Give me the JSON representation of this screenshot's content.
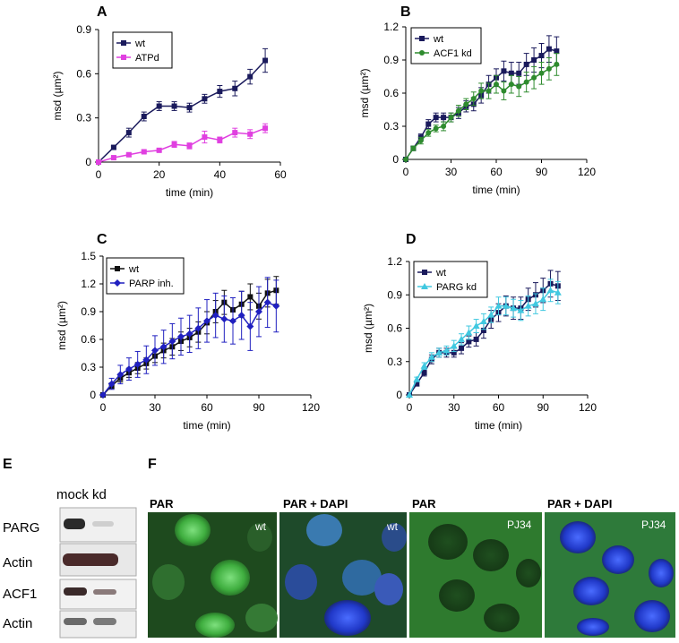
{
  "chart_data": [
    {
      "panel": "A",
      "type": "line",
      "xlabel": "time (min)",
      "ylabel": "msd (µm²)",
      "xlim": [
        0,
        60
      ],
      "ylim": [
        0,
        0.9
      ],
      "xticks": [
        0,
        20,
        40,
        60
      ],
      "yticks": [
        0,
        0.3,
        0.6,
        0.9
      ],
      "ytick_labels": [
        "0",
        "0.3",
        "0.6",
        "0.9"
      ],
      "legend": "top-left",
      "series": [
        {
          "name": "wt",
          "color": "#1a1a5c",
          "marker": "square",
          "x": [
            0,
            5,
            10,
            15,
            20,
            25,
            30,
            35,
            40,
            45,
            50,
            55
          ],
          "y": [
            0,
            0.1,
            0.2,
            0.31,
            0.38,
            0.38,
            0.37,
            0.43,
            0.48,
            0.5,
            0.58,
            0.69
          ],
          "err": [
            0,
            0.01,
            0.03,
            0.03,
            0.03,
            0.03,
            0.03,
            0.03,
            0.04,
            0.05,
            0.05,
            0.08
          ]
        },
        {
          "name": "ATPd",
          "color": "#e040e0",
          "marker": "square",
          "x": [
            0,
            5,
            10,
            15,
            20,
            25,
            30,
            35,
            40,
            45,
            50,
            55
          ],
          "y": [
            0,
            0.03,
            0.05,
            0.07,
            0.08,
            0.12,
            0.11,
            0.17,
            0.15,
            0.2,
            0.19,
            0.23
          ],
          "err": [
            0,
            0.01,
            0.01,
            0.01,
            0.01,
            0.02,
            0.02,
            0.04,
            0.02,
            0.03,
            0.03,
            0.03
          ]
        }
      ]
    },
    {
      "panel": "B",
      "type": "line",
      "xlabel": "time (min)",
      "ylabel": "msd (µm²)",
      "xlim": [
        0,
        120
      ],
      "ylim": [
        0,
        1.2
      ],
      "xticks": [
        0,
        30,
        60,
        90,
        120
      ],
      "yticks": [
        0,
        0.3,
        0.6,
        0.9,
        1.2
      ],
      "ytick_labels": [
        "0",
        "0.3",
        "0.6",
        "0.9",
        "1.2"
      ],
      "legend": "top-left",
      "series": [
        {
          "name": "wt",
          "color": "#1a1a5c",
          "marker": "square",
          "x": [
            0,
            5,
            10,
            15,
            20,
            25,
            30,
            35,
            40,
            45,
            50,
            55,
            60,
            65,
            70,
            75,
            80,
            85,
            90,
            95,
            100
          ],
          "y": [
            0,
            0.1,
            0.2,
            0.32,
            0.38,
            0.38,
            0.38,
            0.42,
            0.48,
            0.5,
            0.58,
            0.68,
            0.74,
            0.8,
            0.78,
            0.78,
            0.86,
            0.9,
            0.94,
            1.0,
            0.98
          ],
          "err": [
            0,
            0.02,
            0.03,
            0.04,
            0.04,
            0.04,
            0.04,
            0.05,
            0.05,
            0.06,
            0.07,
            0.08,
            0.08,
            0.09,
            0.1,
            0.1,
            0.1,
            0.11,
            0.11,
            0.12,
            0.13
          ]
        },
        {
          "name": "ACF1 kd",
          "color": "#2e8b2e",
          "marker": "circle",
          "x": [
            0,
            5,
            10,
            15,
            20,
            25,
            30,
            35,
            40,
            45,
            50,
            55,
            60,
            65,
            70,
            75,
            80,
            85,
            90,
            95,
            100
          ],
          "y": [
            0,
            0.1,
            0.17,
            0.24,
            0.28,
            0.3,
            0.38,
            0.44,
            0.5,
            0.55,
            0.62,
            0.62,
            0.68,
            0.62,
            0.68,
            0.66,
            0.7,
            0.74,
            0.78,
            0.82,
            0.86
          ],
          "err": [
            0,
            0.02,
            0.03,
            0.03,
            0.03,
            0.04,
            0.04,
            0.05,
            0.05,
            0.06,
            0.07,
            0.07,
            0.08,
            0.08,
            0.08,
            0.09,
            0.09,
            0.1,
            0.1,
            0.1,
            0.1
          ]
        }
      ]
    },
    {
      "panel": "C",
      "type": "line",
      "xlabel": "time (min)",
      "ylabel": "msd (µm²)",
      "xlim": [
        0,
        120
      ],
      "ylim": [
        0,
        1.5
      ],
      "xticks": [
        0,
        30,
        60,
        90,
        120
      ],
      "yticks": [
        0,
        0.3,
        0.6,
        0.9,
        1.2,
        1.5
      ],
      "ytick_labels": [
        "0",
        "0.3",
        "0.6",
        "0.9",
        "1.2",
        "1.5"
      ],
      "legend": "top-left",
      "series": [
        {
          "name": "wt",
          "color": "#111111",
          "marker": "square",
          "x": [
            0,
            5,
            10,
            15,
            20,
            25,
            30,
            35,
            40,
            45,
            50,
            55,
            60,
            65,
            70,
            75,
            80,
            85,
            90,
            95,
            100
          ],
          "y": [
            0,
            0.1,
            0.18,
            0.24,
            0.29,
            0.34,
            0.42,
            0.48,
            0.52,
            0.58,
            0.62,
            0.68,
            0.78,
            0.9,
            1.0,
            0.92,
            0.98,
            1.06,
            0.96,
            1.1,
            1.13
          ],
          "err": [
            0,
            0.03,
            0.04,
            0.05,
            0.06,
            0.06,
            0.07,
            0.08,
            0.09,
            0.1,
            0.1,
            0.11,
            0.12,
            0.12,
            0.13,
            0.13,
            0.14,
            0.14,
            0.14,
            0.15,
            0.15
          ]
        },
        {
          "name": "PARP inh.",
          "color": "#2020c0",
          "marker": "diamond",
          "x": [
            0,
            5,
            10,
            15,
            20,
            25,
            30,
            35,
            40,
            45,
            50,
            55,
            60,
            65,
            70,
            75,
            80,
            85,
            90,
            95,
            100
          ],
          "y": [
            0,
            0.12,
            0.22,
            0.28,
            0.33,
            0.38,
            0.48,
            0.52,
            0.58,
            0.63,
            0.66,
            0.72,
            0.8,
            0.86,
            0.82,
            0.8,
            0.86,
            0.74,
            0.9,
            1.0,
            0.96
          ],
          "err": [
            0,
            0.06,
            0.1,
            0.12,
            0.14,
            0.15,
            0.16,
            0.18,
            0.19,
            0.2,
            0.2,
            0.22,
            0.23,
            0.24,
            0.25,
            0.25,
            0.26,
            0.26,
            0.27,
            0.27,
            0.28
          ]
        }
      ]
    },
    {
      "panel": "D",
      "type": "line",
      "xlabel": "time (min)",
      "ylabel": "msd (µm²)",
      "xlim": [
        0,
        120
      ],
      "ylim": [
        0,
        1.2
      ],
      "xticks": [
        0,
        30,
        60,
        90,
        120
      ],
      "yticks": [
        0,
        0.3,
        0.6,
        0.9,
        1.2
      ],
      "ytick_labels": [
        "0",
        "0.3",
        "0.6",
        "0.9",
        "1.2"
      ],
      "legend": "top-left",
      "series": [
        {
          "name": "wt",
          "color": "#1a1a5c",
          "marker": "square",
          "x": [
            0,
            5,
            10,
            15,
            20,
            25,
            30,
            35,
            40,
            45,
            50,
            55,
            60,
            65,
            70,
            75,
            80,
            85,
            90,
            95,
            100
          ],
          "y": [
            0,
            0.1,
            0.2,
            0.32,
            0.38,
            0.38,
            0.38,
            0.42,
            0.48,
            0.5,
            0.58,
            0.68,
            0.74,
            0.8,
            0.78,
            0.78,
            0.86,
            0.9,
            0.94,
            1.0,
            0.98
          ],
          "err": [
            0,
            0.02,
            0.03,
            0.04,
            0.04,
            0.04,
            0.04,
            0.05,
            0.05,
            0.06,
            0.07,
            0.08,
            0.08,
            0.09,
            0.1,
            0.1,
            0.1,
            0.11,
            0.11,
            0.12,
            0.13
          ]
        },
        {
          "name": "PARG kd",
          "color": "#40c8e0",
          "marker": "triangle",
          "x": [
            0,
            5,
            10,
            15,
            20,
            25,
            30,
            35,
            40,
            45,
            50,
            55,
            60,
            65,
            70,
            75,
            80,
            85,
            90,
            95,
            100
          ],
          "y": [
            0,
            0.14,
            0.26,
            0.34,
            0.38,
            0.4,
            0.44,
            0.5,
            0.56,
            0.62,
            0.66,
            0.72,
            0.8,
            0.8,
            0.78,
            0.76,
            0.8,
            0.82,
            0.86,
            0.94,
            0.92
          ],
          "err": [
            0,
            0.02,
            0.03,
            0.04,
            0.04,
            0.04,
            0.05,
            0.05,
            0.06,
            0.06,
            0.07,
            0.07,
            0.08,
            0.08,
            0.08,
            0.09,
            0.09,
            0.09,
            0.1,
            0.1,
            0.1
          ]
        }
      ]
    }
  ],
  "panel_labels": {
    "a": "A",
    "b": "B",
    "c": "C",
    "d": "D",
    "e": "E",
    "f": "F"
  },
  "blot": {
    "header": "mock kd",
    "rows": [
      "PARG",
      "Actin",
      "ACF1",
      "Actin"
    ]
  },
  "micrographs": [
    {
      "title": "PAR",
      "inset": "wt"
    },
    {
      "title": "PAR + DAPI",
      "inset": "wt"
    },
    {
      "title": "PAR",
      "inset": "PJ34"
    },
    {
      "title": "PAR + DAPI",
      "inset": "PJ34"
    }
  ]
}
